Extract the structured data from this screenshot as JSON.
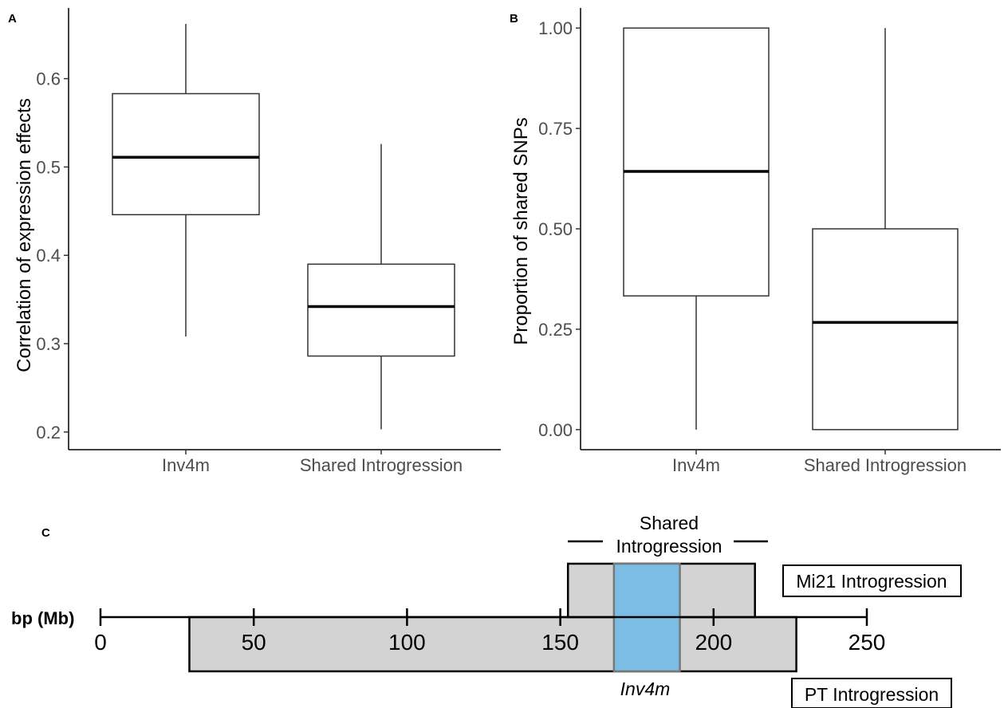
{
  "chart_data": [
    {
      "panel": "A",
      "type": "boxplot",
      "ylabel": "Correlation of expression effects",
      "ylim": [
        0.18,
        0.68
      ],
      "yticks": [
        "0.2",
        "0.3",
        "0.4",
        "0.5",
        "0.6"
      ],
      "categories": [
        "Inv4m",
        "Shared Introgression"
      ],
      "boxes": [
        {
          "category": "Inv4m",
          "min": 0.308,
          "q1": 0.446,
          "median": 0.511,
          "q3": 0.583,
          "max": 0.662
        },
        {
          "category": "Shared Introgression",
          "min": 0.203,
          "q1": 0.286,
          "median": 0.342,
          "q3": 0.39,
          "max": 0.526
        }
      ]
    },
    {
      "panel": "B",
      "type": "boxplot",
      "ylabel": "Proportion of shared SNPs",
      "ylim": [
        -0.05,
        1.05
      ],
      "yticks": [
        "0.00",
        "0.25",
        "0.50",
        "0.75",
        "1.00"
      ],
      "categories": [
        "Inv4m",
        "Shared Introgression"
      ],
      "boxes": [
        {
          "category": "Inv4m",
          "min": 0.0,
          "q1": 0.333,
          "median": 0.643,
          "q3": 1.0,
          "max": 1.0
        },
        {
          "category": "Shared Introgression",
          "min": 0.0,
          "q1": 0.0,
          "median": 0.267,
          "q3": 0.5,
          "max": 1.0
        }
      ]
    },
    {
      "panel": "C",
      "type": "genomic-map",
      "axis_label": "bp (Mb)",
      "xlim": [
        0,
        250
      ],
      "ticks": [
        "0",
        "50",
        "100",
        "150",
        "200",
        "250"
      ],
      "regions": [
        {
          "name": "PT Introgression",
          "start": 29,
          "end": 227,
          "row": "bottom",
          "color": "#d3d3d3"
        },
        {
          "name": "Mi21 Introgression",
          "start": 152.5,
          "end": 213.5,
          "row": "top",
          "color": "#d3d3d3"
        },
        {
          "name": "Inv4m",
          "start": 167.5,
          "end": 189,
          "row": "both",
          "color": "#7cbde6"
        }
      ],
      "shared_label": [
        "Shared",
        "Introgression"
      ]
    }
  ],
  "labels": {
    "panel_a": "A",
    "panel_b": "B",
    "panel_c": "C"
  },
  "colors": {
    "box_fill": "#ffffff",
    "box_stroke": "#333333",
    "median": "#000000",
    "region_fill": "#d3d3d3",
    "inv4m_fill": "#7cbde6",
    "tick_text": "#4d4d4d"
  }
}
